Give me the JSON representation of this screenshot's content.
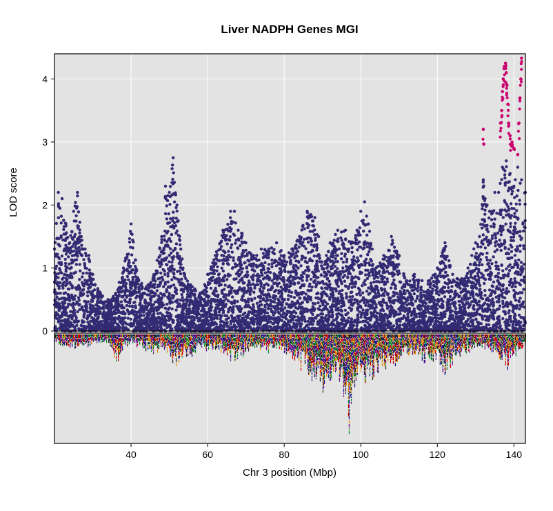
{
  "chart_data": {
    "type": "scatter",
    "title": "Liver NADPH Genes MGI",
    "xlabel": "Chr 3 position (Mbp)",
    "ylabel": "LOD score",
    "xlim": [
      20,
      143
    ],
    "ylim": [
      0,
      4.4
    ],
    "x_ticks": [
      40,
      60,
      80,
      100,
      120,
      140
    ],
    "y_ticks": [
      0,
      1,
      2,
      3,
      4
    ],
    "grid": true,
    "background": "#e3e3e3",
    "colors": {
      "main": "#332a73",
      "highlight": "#c8006e"
    },
    "series": [
      {
        "color": "#332a73",
        "envelope_x": [
          20,
          21,
          22,
          23,
          24,
          25,
          26,
          27,
          28,
          29,
          30,
          32,
          34,
          36,
          38,
          40,
          42,
          44,
          46,
          48,
          49,
          50,
          51,
          52,
          53,
          54,
          56,
          58,
          60,
          62,
          64,
          66,
          67,
          68,
          69,
          70,
          72,
          74,
          76,
          78,
          80,
          82,
          84,
          86,
          88,
          89,
          90,
          91,
          92,
          94,
          96,
          98,
          99,
          100,
          101,
          102,
          103,
          104,
          106,
          108,
          110,
          112,
          114,
          116,
          118,
          120,
          122,
          124,
          126,
          128,
          129,
          130,
          131,
          132,
          133,
          134,
          135,
          136,
          137,
          138,
          139,
          140,
          141,
          142,
          143
        ],
        "envelope_y": [
          1.3,
          2.2,
          2.1,
          1.7,
          1.4,
          1.9,
          2.2,
          1.5,
          1.3,
          1.2,
          0.9,
          0.6,
          0.5,
          0.6,
          1.0,
          1.7,
          0.8,
          0.7,
          0.9,
          1.5,
          2.3,
          2.2,
          2.75,
          2.0,
          1.3,
          0.9,
          0.7,
          0.6,
          0.9,
          1.2,
          1.6,
          1.9,
          1.9,
          1.6,
          1.55,
          1.4,
          1.2,
          1.3,
          1.3,
          1.4,
          1.2,
          1.3,
          1.5,
          1.9,
          1.8,
          1.5,
          1.0,
          1.2,
          1.4,
          1.6,
          1.6,
          1.4,
          1.6,
          1.9,
          2.05,
          1.7,
          1.3,
          1.0,
          1.2,
          1.5,
          1.2,
          0.8,
          0.9,
          0.8,
          0.8,
          1.0,
          1.4,
          0.9,
          0.8,
          1.0,
          1.2,
          1.4,
          1.5,
          2.4,
          2.0,
          1.9,
          2.2,
          2.2,
          2.6,
          2.7,
          2.5,
          2.3,
          2.6,
          2.4,
          2.2
        ]
      },
      {
        "color": "#c8006e",
        "points_x": [
          132.0,
          136.5,
          136.8,
          137.0,
          137.2,
          137.5,
          137.8,
          138.0,
          138.2,
          138.4,
          138.6,
          139.0,
          139.5,
          140.0,
          141.0,
          141.3,
          141.6,
          141.8,
          142.0
        ],
        "points_y": [
          3.2,
          3.3,
          3.5,
          3.8,
          4.0,
          4.2,
          4.25,
          4.1,
          3.9,
          3.6,
          3.3,
          3.1,
          3.0,
          2.9,
          2.8,
          3.3,
          3.7,
          4.0,
          4.33
        ]
      }
    ],
    "gene_track": {
      "palette": [
        "#1a1a8c",
        "#e08a00",
        "#0a8c2a",
        "#c80000",
        "#6a0f8e",
        "#222222"
      ],
      "density_x": [
        20,
        22,
        24,
        26,
        28,
        30,
        32,
        34,
        36,
        38,
        40,
        42,
        44,
        46,
        48,
        50,
        52,
        54,
        56,
        58,
        60,
        62,
        64,
        66,
        68,
        70,
        72,
        74,
        76,
        78,
        80,
        82,
        84,
        86,
        88,
        90,
        92,
        94,
        96,
        97,
        98,
        100,
        102,
        104,
        106,
        108,
        110,
        112,
        114,
        116,
        118,
        120,
        122,
        124,
        126,
        128,
        130,
        132,
        134,
        136,
        138,
        140,
        142,
        143
      ],
      "density_y": [
        0.05,
        0.12,
        0.1,
        0.14,
        0.11,
        0.08,
        0.06,
        0.05,
        0.3,
        0.12,
        0.08,
        0.1,
        0.14,
        0.18,
        0.12,
        0.2,
        0.28,
        0.22,
        0.18,
        0.12,
        0.14,
        0.12,
        0.16,
        0.26,
        0.22,
        0.14,
        0.12,
        0.15,
        0.14,
        0.12,
        0.16,
        0.2,
        0.3,
        0.36,
        0.48,
        0.56,
        0.42,
        0.46,
        0.62,
        1.0,
        0.5,
        0.44,
        0.46,
        0.34,
        0.36,
        0.3,
        0.22,
        0.18,
        0.2,
        0.26,
        0.24,
        0.22,
        0.36,
        0.26,
        0.18,
        0.16,
        0.14,
        0.12,
        0.16,
        0.22,
        0.34,
        0.2,
        0.16,
        0.1
      ]
    }
  }
}
